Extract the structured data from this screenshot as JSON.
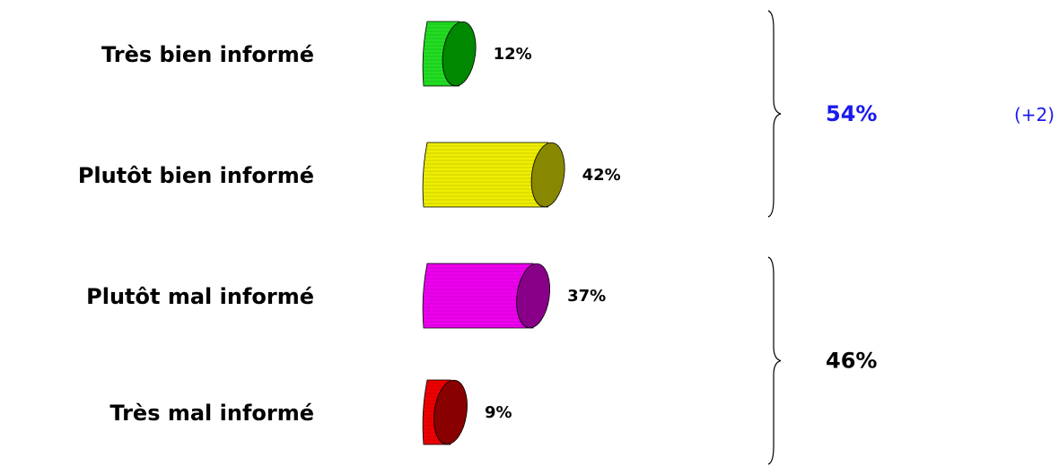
{
  "chart_data": {
    "type": "bar",
    "orientation": "horizontal",
    "categories": [
      "Très bien informé",
      "Plutôt bien informé",
      "Plutôt mal informé",
      "Très mal informé"
    ],
    "values": [
      12,
      42,
      37,
      9
    ],
    "value_labels": [
      "12%",
      "42%",
      "37%",
      "9%"
    ],
    "colors": [
      {
        "front": "#22dd22",
        "end": "#008800"
      },
      {
        "front": "#eeee00",
        "end": "#888800"
      },
      {
        "front": "#ee00ee",
        "end": "#880088"
      },
      {
        "front": "#ee0000",
        "end": "#880000"
      }
    ],
    "groups": [
      {
        "label": "54%",
        "change": "(+2)",
        "members": [
          0,
          1
        ],
        "color": "#1a1aee"
      },
      {
        "label": "46%",
        "change": "",
        "members": [
          2,
          3
        ],
        "color": "#000000"
      }
    ],
    "grid": false,
    "legend": "none"
  }
}
